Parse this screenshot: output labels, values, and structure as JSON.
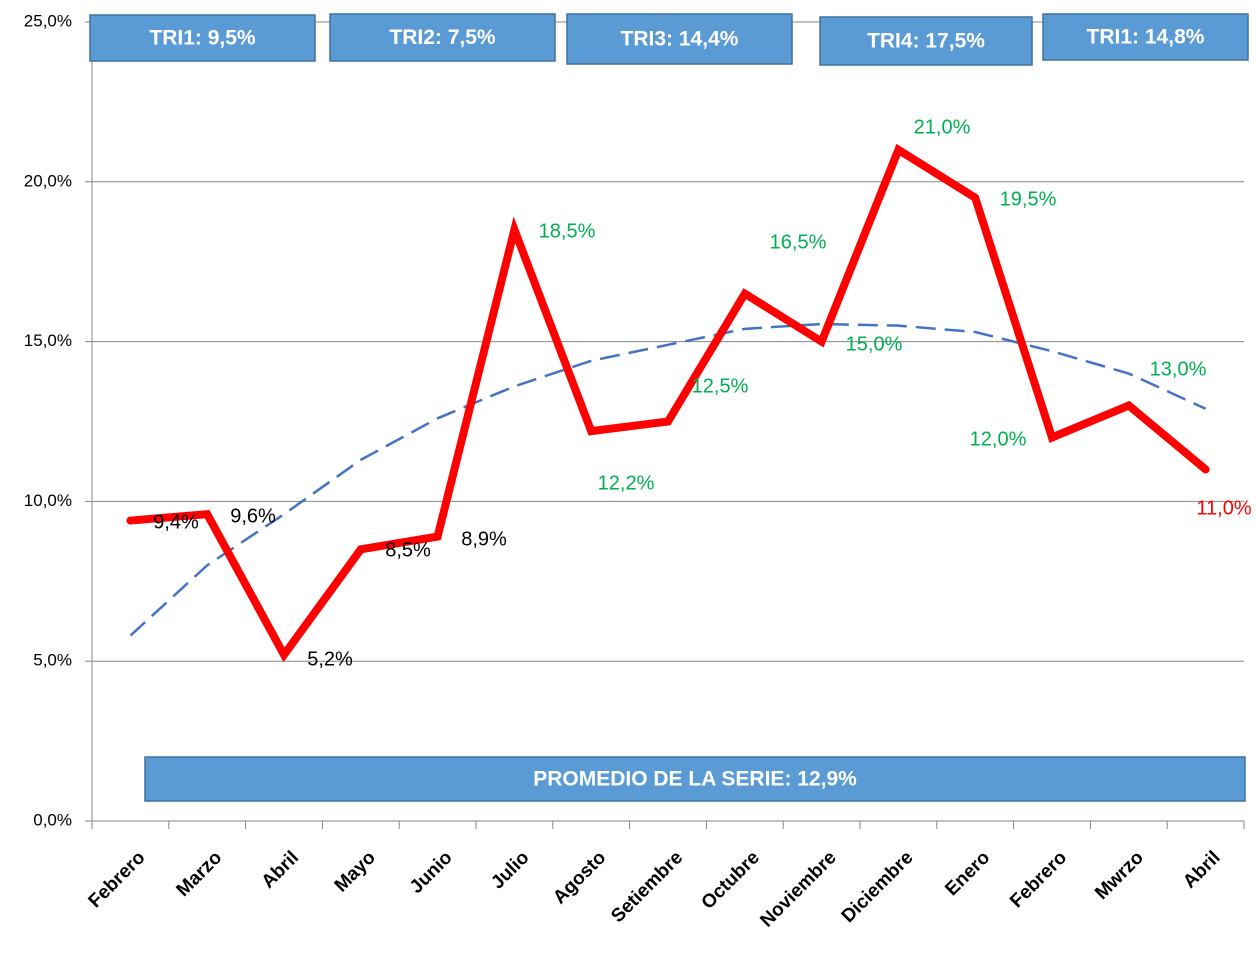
{
  "chart_data": {
    "type": "line",
    "categories": [
      "Febrero",
      "Marzo",
      "Abril",
      "Mayo",
      "Junio",
      "Julio",
      "Agosto",
      "Setiembre",
      "Octubre",
      "Noviembre",
      "Diciembre",
      "Enero",
      "Febrero",
      "Mwrzo",
      "Abril"
    ],
    "series": [
      {
        "color": "#ff0000",
        "values": [
          9.4,
          9.6,
          5.2,
          8.5,
          8.9,
          18.5,
          12.2,
          12.5,
          16.5,
          15.0,
          21.0,
          19.5,
          12.0,
          13.0,
          11.0
        ],
        "value_labels": [
          "9,4%",
          "9,6%",
          "5,2%",
          "8,5%",
          "8,9%",
          "18,5%",
          "12,2%",
          "12,5%",
          "16,5%",
          "15,0%",
          "21,0%",
          "19,5%",
          "12,0%",
          "13,0%",
          "11,0%"
        ],
        "value_label_colors": [
          "#000000",
          "#000000",
          "#000000",
          "#000000",
          "#000000",
          "#00b050",
          "#00b050",
          "#00b050",
          "#00b050",
          "#00b050",
          "#00b050",
          "#00b050",
          "#00b050",
          "#00b050",
          "#ff0000"
        ]
      }
    ],
    "trendline": {
      "color": "#4472c4",
      "values": [
        5.8,
        8.0,
        9.6,
        11.3,
        12.6,
        13.6,
        14.4,
        14.9,
        15.4,
        15.55,
        15.5,
        15.3,
        14.7,
        14.0,
        12.9
      ]
    },
    "ylim": [
      0,
      25
    ],
    "yticks": [
      {
        "value": 0,
        "label": "0,0%"
      },
      {
        "value": 5,
        "label": "5,0%"
      },
      {
        "value": 10,
        "label": "10,0%"
      },
      {
        "value": 15,
        "label": "15,0%"
      },
      {
        "value": 20,
        "label": "20,0%"
      },
      {
        "value": 25,
        "label": "25,0%"
      }
    ],
    "grid": true,
    "annotations": [
      "TRI1:  9,5%",
      "TRI2:  7,5%",
      "TRI3:  14,4%",
      "TRI4:  17,5%",
      "TRI1:  14,8%",
      "PROMEDIO DE LA SERIE:  12,9%"
    ]
  }
}
